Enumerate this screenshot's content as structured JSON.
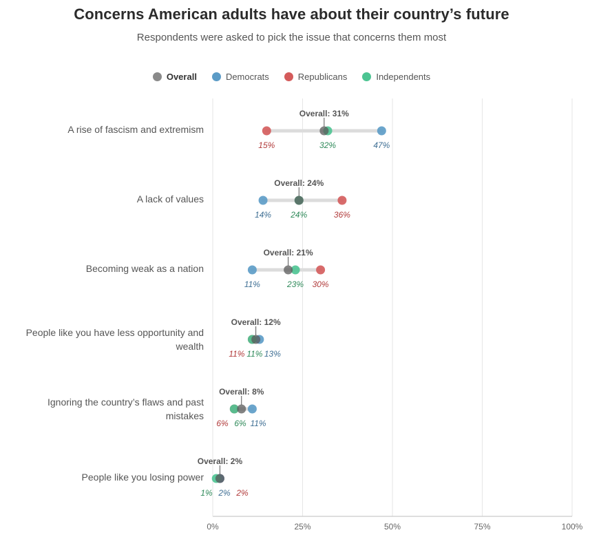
{
  "chart_data": {
    "type": "scatter",
    "title": "Concerns American adults have about their country’s future",
    "subtitle": "Respondents were asked to pick the issue that concerns them most",
    "legend": {
      "placement": "top-center",
      "entries": [
        {
          "key": "overall",
          "label": "Overall",
          "color": "#8a8a8a"
        },
        {
          "key": "democrats",
          "label": "Democrats",
          "color": "#5b9bc6"
        },
        {
          "key": "republicans",
          "label": "Republicans",
          "color": "#d45b5b"
        },
        {
          "key": "independents",
          "label": "Independents",
          "color": "#4cc492"
        }
      ]
    },
    "overall_color": "#5a5a5a",
    "value_label_colors": {
      "democrats": "#3f6f94",
      "republicans": "#b13b3b",
      "independents": "#2f8a5a"
    },
    "overall_prefix": "Overall: ",
    "xlim": [
      0,
      100
    ],
    "x_ticks": [
      {
        "value": 0,
        "label": "0%"
      },
      {
        "value": 25,
        "label": "25%"
      },
      {
        "value": 50,
        "label": "50%"
      },
      {
        "value": 75,
        "label": "75%"
      },
      {
        "value": 100,
        "label": "100%"
      }
    ],
    "grid": true,
    "categories": [
      {
        "label": [
          "A rise of fascism and extremism"
        ],
        "overall": 31,
        "overall_label": "31%",
        "democrats": 47,
        "democrats_label": "47%",
        "republicans": 15,
        "republicans_label": "15%",
        "independents": 32,
        "independents_label": "32%"
      },
      {
        "label": [
          "A lack of values"
        ],
        "overall": 24,
        "overall_label": "24%",
        "democrats": 14,
        "democrats_label": "14%",
        "republicans": 36,
        "republicans_label": "36%",
        "independents": 24,
        "independents_label": "24%"
      },
      {
        "label": [
          "Becoming weak as a nation"
        ],
        "overall": 21,
        "overall_label": "21%",
        "democrats": 11,
        "democrats_label": "11%",
        "republicans": 30,
        "republicans_label": "30%",
        "independents": 23,
        "independents_label": "23%"
      },
      {
        "label": [
          "People like you have less opportunity and",
          "wealth"
        ],
        "overall": 12,
        "overall_label": "12%",
        "democrats": 13,
        "democrats_label": "13%",
        "republicans": 11,
        "republicans_label": "11%",
        "independents": 11,
        "independents_label": "11%"
      },
      {
        "label": [
          "Ignoring the country’s flaws and past",
          "mistakes"
        ],
        "overall": 8,
        "overall_label": "8%",
        "democrats": 11,
        "democrats_label": "11%",
        "republicans": 6,
        "republicans_label": "6%",
        "independents": 6,
        "independents_label": "6%"
      },
      {
        "label": [
          "People like you losing power"
        ],
        "overall": 2,
        "overall_label": "2%",
        "democrats": 2,
        "democrats_label": "2%",
        "republicans": 2,
        "republicans_label": "2%",
        "independents": 1,
        "independents_label": "1%"
      }
    ]
  }
}
